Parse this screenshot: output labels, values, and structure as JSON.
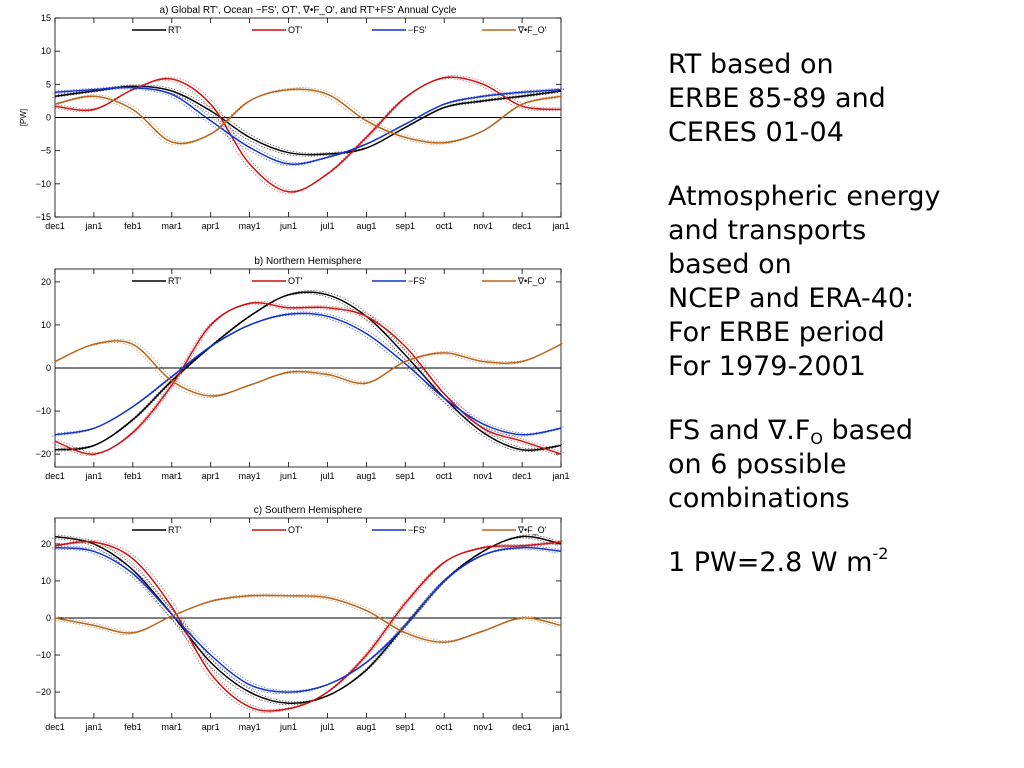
{
  "colors": {
    "RT": "#000000",
    "OT": "#cc1111",
    "FS": "#1133cc",
    "DIV": "#b8651b",
    "zero": "#000000",
    "axis": "#000000"
  },
  "chart_data": [
    {
      "type": "line",
      "title": "a) Global RT', Ocean −FS', OT', ∇•F_O', and RT'+FS' Annual Cycle",
      "ylabel": "[PW]",
      "xlabel": "",
      "ylim": [
        -15,
        15
      ],
      "yticks": [
        -15,
        -10,
        -5,
        0,
        5,
        10,
        15
      ],
      "yticklabels": [
        "−15",
        "−10",
        "−5",
        "0",
        "5",
        "10",
        "15"
      ],
      "categories": [
        "dec1",
        "jan1",
        "feb1",
        "mar1",
        "apr1",
        "may1",
        "jun1",
        "jul1",
        "aug1",
        "sep1",
        "oct1",
        "nov1",
        "dec1",
        "jan1"
      ],
      "legend_placement": "top",
      "series": [
        {
          "name": "RT'",
          "color_key": "RT",
          "values": [
            3.2,
            4.0,
            4.7,
            4.0,
            1.0,
            -3.0,
            -5.3,
            -5.5,
            -4.6,
            -1.5,
            1.5,
            2.5,
            3.2,
            4.0
          ]
        },
        {
          "name": "OT'",
          "color_key": "OT",
          "values": [
            1.7,
            1.2,
            4.2,
            5.8,
            2.0,
            -7.0,
            -11.2,
            -8.5,
            -3.0,
            3.0,
            6.0,
            5.0,
            1.7,
            1.2
          ]
        },
        {
          "name": "−FS'",
          "color_key": "FS",
          "values": [
            3.8,
            4.2,
            4.5,
            3.5,
            -0.5,
            -4.5,
            -7.0,
            -6.0,
            -4.0,
            -1.0,
            2.0,
            3.2,
            3.8,
            4.2
          ]
        },
        {
          "name": "∇•F_O'",
          "color_key": "DIV",
          "values": [
            2.0,
            3.2,
            1.2,
            -3.7,
            -2.5,
            2.5,
            4.2,
            3.5,
            -0.5,
            -3.0,
            -3.8,
            -2.0,
            2.0,
            3.2
          ]
        }
      ]
    },
    {
      "type": "line",
      "title": "b) Northern Hemisphere",
      "ylabel": "",
      "xlabel": "",
      "ylim": [
        -23,
        23
      ],
      "yticks": [
        -20,
        -10,
        0,
        10,
        20
      ],
      "yticklabels": [
        "−20",
        "−10",
        "0",
        "10",
        "20"
      ],
      "categories": [
        "dec1",
        "jan1",
        "feb1",
        "mar1",
        "apr1",
        "may1",
        "jun1",
        "jul1",
        "aug1",
        "sep1",
        "oct1",
        "nov1",
        "dec1",
        "jan1"
      ],
      "legend_placement": "top",
      "series": [
        {
          "name": "RT'",
          "color_key": "RT",
          "values": [
            -19.0,
            -18.0,
            -12.0,
            -3.0,
            5.0,
            12.0,
            17.0,
            17.0,
            12.0,
            3.0,
            -7.0,
            -15.0,
            -19.0,
            -18.0
          ]
        },
        {
          "name": "OT'",
          "color_key": "OT",
          "values": [
            -17.0,
            -20.0,
            -15.0,
            -4.0,
            10.0,
            15.0,
            14.0,
            14.0,
            12.0,
            5.0,
            -6.0,
            -14.0,
            -17.0,
            -20.0
          ]
        },
        {
          "name": "−FS'",
          "color_key": "FS",
          "values": [
            -15.5,
            -14.0,
            -9.0,
            -2.0,
            5.0,
            10.0,
            12.5,
            12.0,
            8.0,
            1.0,
            -7.0,
            -13.0,
            -15.5,
            -14.0
          ]
        },
        {
          "name": "∇•F_O'",
          "color_key": "DIV",
          "values": [
            1.5,
            5.5,
            5.5,
            -3.0,
            -6.5,
            -4.0,
            -1.0,
            -1.5,
            -3.5,
            1.5,
            3.5,
            1.5,
            1.5,
            5.5
          ]
        }
      ]
    },
    {
      "type": "line",
      "title": "c) Southern Hemisphere",
      "ylabel": "",
      "xlabel": "",
      "ylim": [
        -27,
        27
      ],
      "yticks": [
        -20,
        -10,
        0,
        10,
        20
      ],
      "yticklabels": [
        "−20",
        "−10",
        "0",
        "10",
        "20"
      ],
      "categories": [
        "dec1",
        "jan1",
        "feb1",
        "mar1",
        "apr1",
        "may1",
        "jun1",
        "jul1",
        "aug1",
        "sep1",
        "oct1",
        "nov1",
        "dec1",
        "jan1"
      ],
      "legend_placement": "top",
      "series": [
        {
          "name": "RT'",
          "color_key": "RT",
          "values": [
            22.0,
            20.0,
            13.0,
            1.0,
            -12.0,
            -20.0,
            -23.0,
            -21.0,
            -14.0,
            -2.0,
            10.0,
            18.0,
            22.0,
            20.0
          ]
        },
        {
          "name": "OT'",
          "color_key": "OT",
          "values": [
            19.5,
            20.5,
            16.0,
            3.0,
            -15.0,
            -24.0,
            -24.5,
            -20.0,
            -10.0,
            4.0,
            15.0,
            19.0,
            19.5,
            20.5
          ]
        },
        {
          "name": "−FS'",
          "color_key": "FS",
          "values": [
            19.0,
            18.0,
            12.0,
            1.0,
            -10.0,
            -18.0,
            -20.0,
            -18.0,
            -12.0,
            -2.0,
            10.0,
            17.0,
            19.0,
            18.0
          ]
        },
        {
          "name": "∇•F_O'",
          "color_key": "DIV",
          "values": [
            0.0,
            -2.0,
            -4.0,
            0.5,
            4.5,
            6.0,
            6.0,
            5.5,
            2.0,
            -4.0,
            -6.5,
            -3.5,
            0.0,
            -2.0
          ]
        }
      ]
    }
  ],
  "notes": {
    "line1": "RT based on",
    "line2": "ERBE 85-89 and",
    "line3": "CERES 01-04",
    "line4": "Atmospheric energy",
    "line5": "and transports",
    "line6": "based on",
    "line7": "NCEP and ERA-40:",
    "line8": "For ERBE period",
    "line9": "For 1979-2001",
    "line10_a": "FS and ∇.F",
    "line10_sub": "O",
    "line10_b": " based",
    "line11": "on 6 possible",
    "line12": "combinations",
    "line13_a": "1 PW=2.8 W m",
    "line13_sup": "-2"
  }
}
